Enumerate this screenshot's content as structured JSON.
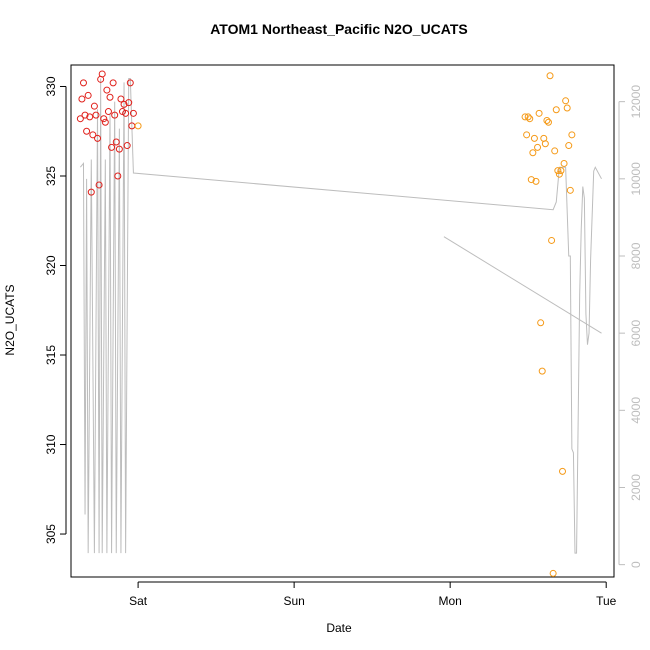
{
  "chart_data": {
    "type": "scatter",
    "title": "ATOM1 Northeast_Pacific N2O_UCATS",
    "xlabel": "Date",
    "ylabel": "N2O_UCATS",
    "x_ticks": [
      "Sat",
      "Sun",
      "Mon",
      "Tue"
    ],
    "y_ticks": [
      "305",
      "310",
      "315",
      "320",
      "325",
      "330"
    ],
    "y2_ticks": [
      "0",
      "2000",
      "4000",
      "6000",
      "8000",
      "10000",
      "12000"
    ],
    "xlim_days": [
      -0.43,
      3.05
    ],
    "ylim": [
      302.6,
      331.2
    ],
    "y2lim": [
      -320,
      12950
    ],
    "colors": {
      "series_a": "#e0201b",
      "series_b": "#f59a18",
      "altitude": "#bdbdbd",
      "axis": "#000000",
      "axis2": "#bdbdbd"
    },
    "series": [
      {
        "color_key": "series_a",
        "points": [
          [
            -0.37,
            328.2
          ],
          [
            -0.36,
            329.3
          ],
          [
            -0.35,
            330.2
          ],
          [
            -0.34,
            328.4
          ],
          [
            -0.33,
            327.5
          ],
          [
            -0.32,
            329.5
          ],
          [
            -0.31,
            328.3
          ],
          [
            -0.3,
            324.1
          ],
          [
            -0.29,
            327.3
          ],
          [
            -0.28,
            328.9
          ],
          [
            -0.27,
            328.4
          ],
          [
            -0.26,
            327.1
          ],
          [
            -0.25,
            324.5
          ],
          [
            -0.24,
            330.4
          ],
          [
            -0.23,
            330.7
          ],
          [
            -0.22,
            328.2
          ],
          [
            -0.21,
            328.0
          ],
          [
            -0.2,
            329.8
          ],
          [
            -0.19,
            328.6
          ],
          [
            -0.18,
            329.4
          ],
          [
            -0.17,
            326.6
          ],
          [
            -0.16,
            330.2
          ],
          [
            -0.15,
            328.4
          ],
          [
            -0.14,
            326.9
          ],
          [
            -0.13,
            325.0
          ],
          [
            -0.12,
            326.5
          ],
          [
            -0.11,
            329.3
          ],
          [
            -0.1,
            328.6
          ],
          [
            -0.09,
            329.0
          ],
          [
            -0.08,
            328.5
          ],
          [
            -0.07,
            326.7
          ],
          [
            -0.06,
            329.1
          ],
          [
            -0.05,
            330.2
          ],
          [
            -0.04,
            327.8
          ],
          [
            -0.03,
            328.5
          ]
        ]
      },
      {
        "color_key": "series_b",
        "points": [
          [
            0.0,
            327.8
          ],
          [
            2.48,
            328.3
          ],
          [
            2.49,
            327.3
          ],
          [
            2.5,
            328.3
          ],
          [
            2.51,
            328.2
          ],
          [
            2.52,
            324.8
          ],
          [
            2.53,
            326.3
          ],
          [
            2.54,
            327.1
          ],
          [
            2.55,
            324.7
          ],
          [
            2.56,
            326.6
          ],
          [
            2.57,
            328.5
          ],
          [
            2.58,
            316.8
          ],
          [
            2.59,
            314.1
          ],
          [
            2.6,
            327.1
          ],
          [
            2.61,
            326.8
          ],
          [
            2.62,
            328.1
          ],
          [
            2.63,
            328.0
          ],
          [
            2.64,
            330.6
          ],
          [
            2.65,
            321.4
          ],
          [
            2.66,
            302.8
          ],
          [
            2.67,
            326.4
          ],
          [
            2.68,
            328.7
          ],
          [
            2.69,
            325.3
          ],
          [
            2.7,
            325.1
          ],
          [
            2.71,
            325.3
          ],
          [
            2.72,
            308.5
          ],
          [
            2.73,
            325.7
          ],
          [
            2.74,
            329.2
          ],
          [
            2.75,
            328.8
          ],
          [
            2.76,
            326.7
          ],
          [
            2.77,
            324.2
          ],
          [
            2.78,
            327.3
          ]
        ]
      }
    ],
    "altitude_trace": [
      [
        -0.37,
        10300
      ],
      [
        -0.35,
        10400
      ],
      [
        -0.34,
        1300
      ],
      [
        -0.33,
        10000
      ],
      [
        -0.32,
        300
      ],
      [
        -0.3,
        10500
      ],
      [
        -0.28,
        300
      ],
      [
        -0.26,
        11800
      ],
      [
        -0.25,
        300
      ],
      [
        -0.24,
        12600
      ],
      [
        -0.23,
        300
      ],
      [
        -0.21,
        10500
      ],
      [
        -0.2,
        300
      ],
      [
        -0.18,
        11700
      ],
      [
        -0.17,
        300
      ],
      [
        -0.15,
        12000
      ],
      [
        -0.14,
        300
      ],
      [
        -0.12,
        11300
      ],
      [
        -0.11,
        300
      ],
      [
        -0.09,
        12500
      ],
      [
        -0.08,
        300
      ],
      [
        -0.06,
        12600
      ],
      [
        -0.05,
        12600
      ],
      [
        -0.03,
        10150
      ],
      [
        2.66,
        9200
      ],
      [
        2.68,
        9400
      ],
      [
        2.7,
        10300
      ],
      [
        2.74,
        10300
      ],
      [
        2.76,
        8000
      ],
      [
        2.77,
        8000
      ],
      [
        2.78,
        3000
      ],
      [
        2.79,
        2900
      ],
      [
        2.8,
        300
      ],
      [
        2.81,
        300
      ],
      [
        2.83,
        7000
      ],
      [
        2.84,
        8700
      ],
      [
        2.85,
        9800
      ],
      [
        2.86,
        9500
      ],
      [
        2.87,
        6500
      ],
      [
        2.88,
        5700
      ],
      [
        2.89,
        6000
      ],
      [
        2.9,
        7900
      ],
      [
        2.92,
        10200
      ],
      [
        2.93,
        10300
      ],
      [
        2.97,
        10000
      ]
    ],
    "connector_line": [
      [
        1.96,
        8500
      ],
      [
        2.97,
        6000
      ]
    ]
  }
}
